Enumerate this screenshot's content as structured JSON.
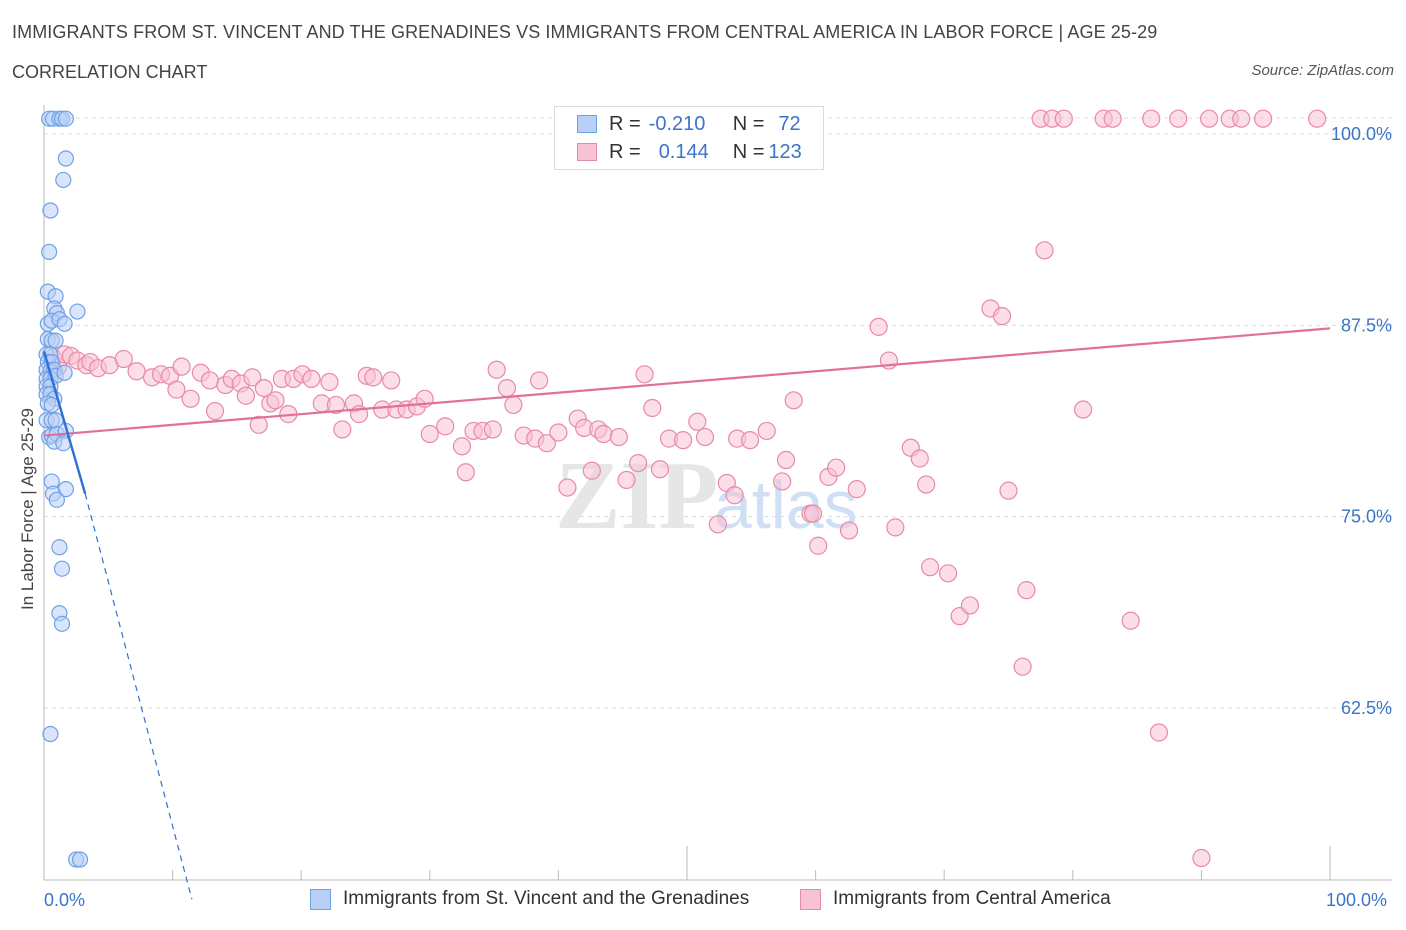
{
  "header": {
    "title": "IMMIGRANTS FROM ST. VINCENT AND THE GRENADINES VS IMMIGRANTS FROM CENTRAL AMERICA IN LABOR FORCE | AGE 25-29",
    "subtitle": "CORRELATION CHART",
    "source": "Source: ZipAtlas.com"
  },
  "watermark": {
    "zip": "ZIP",
    "atlas": "atlas"
  },
  "colors": {
    "blue": "#6fa0e6",
    "blue_fill": "#b8d0f5",
    "blue_line": "#2f6fd6",
    "pink": "#e889a9",
    "pink_fill": "#f7c3d4",
    "pink_line": "#e0709a",
    "axis_label": "#3b74c9",
    "grid": "#dddddd"
  },
  "stats": {
    "r_label": "R =",
    "n_label": "N =",
    "blue": {
      "r": "-0.210",
      "n": "72"
    },
    "pink": {
      "r": "0.144",
      "n": "123"
    }
  },
  "legend": {
    "blue": "Immigrants from St. Vincent and the Grenadines",
    "pink": "Immigrants from Central America"
  },
  "chart_data": {
    "type": "scatter",
    "title": "IMMIGRANTS FROM ST. VINCENT AND THE GRENADINES VS IMMIGRANTS FROM CENTRAL AMERICA IN LABOR FORCE | AGE 25-29",
    "xlabel": "",
    "ylabel": "In Labor Force | Age 25-29",
    "xlim": [
      0,
      100
    ],
    "ylim": [
      50,
      101
    ],
    "x_tick_labels": [
      "0.0%",
      "100.0%"
    ],
    "y_ticks": [
      100,
      87.5,
      75,
      62.5
    ],
    "y_tick_labels": [
      "100.0%",
      "87.5%",
      "75.0%",
      "62.5%"
    ],
    "grid": true,
    "series": [
      {
        "name": "Immigrants from St. Vincent and the Grenadines",
        "color": "blue",
        "trend": {
          "x0": 0,
          "y0": 85.8,
          "x1": 3.2,
          "y1": 76.5,
          "dash_to_x": 11.5,
          "dash_to_y": 50
        },
        "points": [
          [
            0.4,
            101
          ],
          [
            0.7,
            101
          ],
          [
            1.2,
            101
          ],
          [
            1.4,
            101
          ],
          [
            1.7,
            101
          ],
          [
            1.7,
            98.4
          ],
          [
            1.5,
            97
          ],
          [
            0.5,
            95
          ],
          [
            0.4,
            92.3
          ],
          [
            0.3,
            89.7
          ],
          [
            0.9,
            89.4
          ],
          [
            0.8,
            88.6
          ],
          [
            1.0,
            88.3
          ],
          [
            2.6,
            88.4
          ],
          [
            0.3,
            87.6
          ],
          [
            0.6,
            87.8
          ],
          [
            1.2,
            87.9
          ],
          [
            1.6,
            87.6
          ],
          [
            0.3,
            86.6
          ],
          [
            0.6,
            86.5
          ],
          [
            0.9,
            86.5
          ],
          [
            0.2,
            85.6
          ],
          [
            0.5,
            85.6
          ],
          [
            0.3,
            85.1
          ],
          [
            0.6,
            85.1
          ],
          [
            0.2,
            84.6
          ],
          [
            0.5,
            84.5
          ],
          [
            0.8,
            84.6
          ],
          [
            0.2,
            84.0
          ],
          [
            0.5,
            84.0
          ],
          [
            0.9,
            84.2
          ],
          [
            1.6,
            84.4
          ],
          [
            0.2,
            83.5
          ],
          [
            0.5,
            83.5
          ],
          [
            0.2,
            83.0
          ],
          [
            0.5,
            83.0
          ],
          [
            0.8,
            82.7
          ],
          [
            0.3,
            82.4
          ],
          [
            0.6,
            82.3
          ],
          [
            0.2,
            81.3
          ],
          [
            0.6,
            81.3
          ],
          [
            0.9,
            81.3
          ],
          [
            0.4,
            80.2
          ],
          [
            0.6,
            80.3
          ],
          [
            1.0,
            80.4
          ],
          [
            1.7,
            80.6
          ],
          [
            0.8,
            79.9
          ],
          [
            1.5,
            79.8
          ],
          [
            0.6,
            77.3
          ],
          [
            1.7,
            76.8
          ],
          [
            0.7,
            76.5
          ],
          [
            1.0,
            76.1
          ],
          [
            1.2,
            73.0
          ],
          [
            1.4,
            71.6
          ],
          [
            1.2,
            68.7
          ],
          [
            1.4,
            68.0
          ],
          [
            0.5,
            60.8
          ],
          [
            2.5,
            52.6
          ],
          [
            2.8,
            52.6
          ]
        ]
      },
      {
        "name": "Immigrants from Central America",
        "color": "pink",
        "trend": {
          "x0": 0,
          "y0": 80.3,
          "x1": 100,
          "y1": 87.3
        },
        "points": [
          [
            0.7,
            85.4
          ],
          [
            1.1,
            84.8
          ],
          [
            1.6,
            85.6
          ],
          [
            2.1,
            85.5
          ],
          [
            2.6,
            85.2
          ],
          [
            3.3,
            84.9
          ],
          [
            3.6,
            85.1
          ],
          [
            4.2,
            84.7
          ],
          [
            5.1,
            84.9
          ],
          [
            6.2,
            85.3
          ],
          [
            7.2,
            84.5
          ],
          [
            8.4,
            84.1
          ],
          [
            9.1,
            84.3
          ],
          [
            9.8,
            84.2
          ],
          [
            10.3,
            83.3
          ],
          [
            10.7,
            84.8
          ],
          [
            11.4,
            82.7
          ],
          [
            12.2,
            84.4
          ],
          [
            12.9,
            83.9
          ],
          [
            13.3,
            81.9
          ],
          [
            14.1,
            83.6
          ],
          [
            14.6,
            84.0
          ],
          [
            15.3,
            83.7
          ],
          [
            15.7,
            82.9
          ],
          [
            16.2,
            84.1
          ],
          [
            16.7,
            81.0
          ],
          [
            17.1,
            83.4
          ],
          [
            17.6,
            82.4
          ],
          [
            18.0,
            82.6
          ],
          [
            18.5,
            84.0
          ],
          [
            19.0,
            81.7
          ],
          [
            19.4,
            84.0
          ],
          [
            20.1,
            84.3
          ],
          [
            20.8,
            84.0
          ],
          [
            21.6,
            82.4
          ],
          [
            22.2,
            83.8
          ],
          [
            22.7,
            82.3
          ],
          [
            23.2,
            80.7
          ],
          [
            24.1,
            82.4
          ],
          [
            24.5,
            81.7
          ],
          [
            25.1,
            84.2
          ],
          [
            25.6,
            84.1
          ],
          [
            26.3,
            82.0
          ],
          [
            27.0,
            83.9
          ],
          [
            27.4,
            82.0
          ],
          [
            28.2,
            82.0
          ],
          [
            29.0,
            82.2
          ],
          [
            29.6,
            82.7
          ],
          [
            30.0,
            80.4
          ],
          [
            31.2,
            80.9
          ],
          [
            32.5,
            79.6
          ],
          [
            32.8,
            77.9
          ],
          [
            33.4,
            80.6
          ],
          [
            34.1,
            80.6
          ],
          [
            34.9,
            80.7
          ],
          [
            35.2,
            84.6
          ],
          [
            36.0,
            83.4
          ],
          [
            36.5,
            82.3
          ],
          [
            37.3,
            80.3
          ],
          [
            38.2,
            80.1
          ],
          [
            38.5,
            83.9
          ],
          [
            39.1,
            79.8
          ],
          [
            40.0,
            80.5
          ],
          [
            40.7,
            76.9
          ],
          [
            41.5,
            81.4
          ],
          [
            42.0,
            80.8
          ],
          [
            42.6,
            78.0
          ],
          [
            43.1,
            80.7
          ],
          [
            43.5,
            80.4
          ],
          [
            44.7,
            80.2
          ],
          [
            45.3,
            77.4
          ],
          [
            46.2,
            78.5
          ],
          [
            46.7,
            84.3
          ],
          [
            47.3,
            82.1
          ],
          [
            47.9,
            78.1
          ],
          [
            48.6,
            80.1
          ],
          [
            49.7,
            80.0
          ],
          [
            50.8,
            81.2
          ],
          [
            51.4,
            80.2
          ],
          [
            52.4,
            74.5
          ],
          [
            53.1,
            77.2
          ],
          [
            53.7,
            76.4
          ],
          [
            53.9,
            80.1
          ],
          [
            54.9,
            80.0
          ],
          [
            56.2,
            80.6
          ],
          [
            57.4,
            77.3
          ],
          [
            57.7,
            78.7
          ],
          [
            58.3,
            82.6
          ],
          [
            59.6,
            75.2
          ],
          [
            59.8,
            75.2
          ],
          [
            60.2,
            73.1
          ],
          [
            61.0,
            77.6
          ],
          [
            61.6,
            78.2
          ],
          [
            62.6,
            74.1
          ],
          [
            63.2,
            76.8
          ],
          [
            64.9,
            87.4
          ],
          [
            65.7,
            85.2
          ],
          [
            66.2,
            74.3
          ],
          [
            67.4,
            79.5
          ],
          [
            68.1,
            78.8
          ],
          [
            68.6,
            77.1
          ],
          [
            68.9,
            71.7
          ],
          [
            70.3,
            71.3
          ],
          [
            71.2,
            68.5
          ],
          [
            72.0,
            69.2
          ],
          [
            73.6,
            88.6
          ],
          [
            74.5,
            88.1
          ],
          [
            75.0,
            76.7
          ],
          [
            76.1,
            65.2
          ],
          [
            76.4,
            70.2
          ],
          [
            77.8,
            92.4
          ],
          [
            77.5,
            101
          ],
          [
            78.4,
            101
          ],
          [
            79.3,
            101
          ],
          [
            80.8,
            82.0
          ],
          [
            82.4,
            101
          ],
          [
            83.1,
            101
          ],
          [
            84.5,
            68.2
          ],
          [
            86.1,
            101
          ],
          [
            86.7,
            60.9
          ],
          [
            88.2,
            101
          ],
          [
            90.0,
            52.7
          ],
          [
            90.6,
            101
          ],
          [
            92.2,
            101
          ],
          [
            93.1,
            101
          ],
          [
            94.8,
            101
          ],
          [
            99.0,
            101
          ]
        ]
      }
    ]
  }
}
